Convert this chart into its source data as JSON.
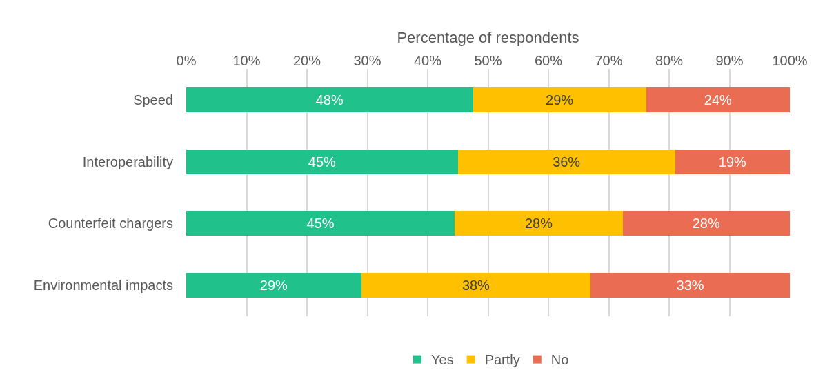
{
  "chart_data": {
    "type": "bar",
    "orientation": "horizontal",
    "stacked": true,
    "xlabel": "Percentage of respondents",
    "categories": [
      "Speed",
      "Interoperability",
      "Counterfeit chargers",
      "Environmental impacts"
    ],
    "series": [
      {
        "name": "Yes",
        "color": "#20c18b",
        "values": [
          47.5,
          45,
          44.5,
          29
        ],
        "value_labels": [
          "48%",
          "45%",
          "45%",
          "29%"
        ]
      },
      {
        "name": "Partly",
        "color": "#ffc000",
        "values": [
          28.7,
          36,
          27.8,
          38
        ],
        "value_labels": [
          "29%",
          "36%",
          "28%",
          "38%"
        ]
      },
      {
        "name": "No",
        "color": "#e96c53",
        "values": [
          23.8,
          19,
          27.7,
          33
        ],
        "value_labels": [
          "24%",
          "19%",
          "28%",
          "33%"
        ]
      }
    ],
    "xlim": [
      0,
      100
    ],
    "xticks": [
      {
        "value": 0,
        "label": "0%"
      },
      {
        "value": 10,
        "label": "10%"
      },
      {
        "value": 20,
        "label": "20%"
      },
      {
        "value": 30,
        "label": "30%"
      },
      {
        "value": 40,
        "label": "40%"
      },
      {
        "value": 50,
        "label": "50%"
      },
      {
        "value": 60,
        "label": "60%"
      },
      {
        "value": 70,
        "label": "70%"
      },
      {
        "value": 80,
        "label": "80%"
      },
      {
        "value": 90,
        "label": "90%"
      },
      {
        "value": 100,
        "label": "100%"
      }
    ],
    "grid": "x",
    "legend": "bottom"
  }
}
